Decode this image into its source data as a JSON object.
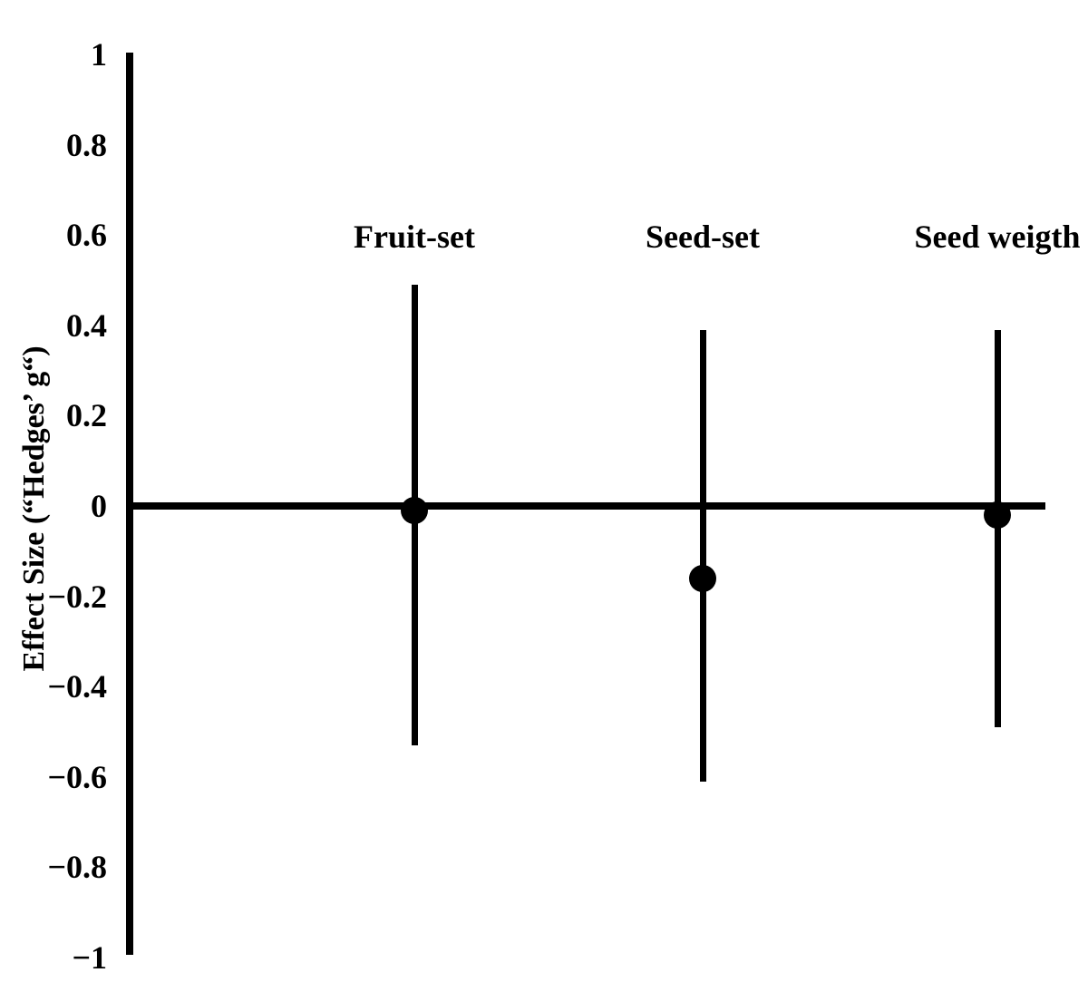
{
  "colors": {
    "foreground": "#000000",
    "background": "#ffffff"
  },
  "chart_data": {
    "type": "scatter",
    "subtype": "effect-size-forest-plot",
    "title": "",
    "xlabel": "",
    "ylabel": "Effect Size (“Hedges’ g“)",
    "ylim": [
      -1,
      1
    ],
    "yticks": [
      1,
      0.8,
      0.6,
      0.4,
      0.2,
      0,
      -0.2,
      -0.4,
      -0.6,
      -0.8,
      -1
    ],
    "ytick_labels": [
      "1",
      "0.8",
      "0.6",
      "0.4",
      "0.2",
      "0",
      "−0.2",
      "−0.4",
      "−0.6",
      "−0.8",
      "−1"
    ],
    "grid": false,
    "legend": "none",
    "zero_reference_line": 0,
    "marker": "filled-circle",
    "points": [
      {
        "label": "Fruit-set",
        "effect": -0.01,
        "ci_low": -0.53,
        "ci_high": 0.49
      },
      {
        "label": "Seed-set",
        "effect": -0.16,
        "ci_low": -0.61,
        "ci_high": 0.39
      },
      {
        "label": "Seed weigth",
        "effect": -0.02,
        "ci_low": -0.49,
        "ci_high": 0.39
      }
    ]
  }
}
